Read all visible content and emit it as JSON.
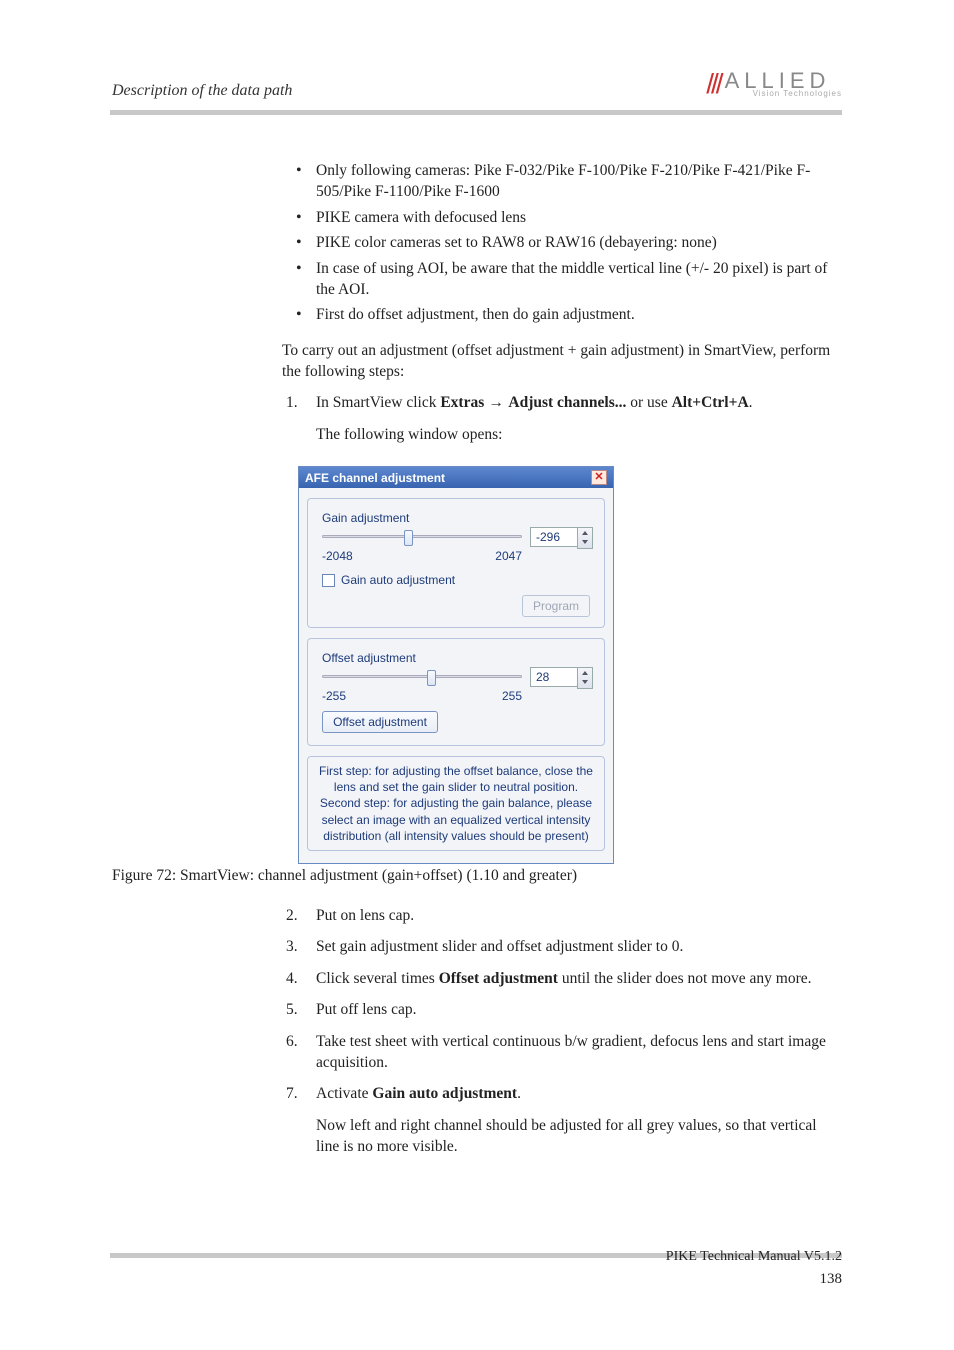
{
  "header": {
    "title": "Description of the data path",
    "logo_main": "ALLIED",
    "logo_sub": "Vision Technologies"
  },
  "bullets": [
    "Only following cameras: Pike F-032/Pike F-100/Pike F-210/Pike F-421/Pike F-505/Pike F-1100/Pike F-1600",
    "PIKE camera with defocused lens",
    "PIKE color cameras set to RAW8 or RAW16 (debayering: none)",
    "In case of using AOI, be aware that the middle vertical line (+/- 20 pixel) is part of the AOI.",
    "First do offset adjustment, then do gain adjustment."
  ],
  "intro": "To carry out an adjustment (offset adjustment + gain adjustment) in SmartView, perform the following steps:",
  "step1": {
    "pre": "In SmartView click ",
    "b1": "Extras",
    "arrow": " → ",
    "b2": "Adjust channels...",
    "mid": " or use ",
    "b3": "Alt+Ctrl+A",
    "end": ".",
    "sub": "The following window opens:"
  },
  "dialog": {
    "title": "AFE channel adjustment",
    "gain_label": "Gain adjustment",
    "gain_value": "-296",
    "gain_min": "-2048",
    "gain_max": "2047",
    "gain_thumb_pct": 43,
    "gain_auto": "Gain auto adjustment",
    "program": "Program",
    "offset_label": "Offset adjustment",
    "offset_value": "28",
    "offset_min": "-255",
    "offset_max": "255",
    "offset_thumb_pct": 55,
    "offset_btn": "Offset adjustment",
    "info": "First step: for adjusting the offset balance, close the lens and set the gain slider to neutral position. Second step: for adjusting the gain balance, please select an image with an equalized vertical intensity distribution (all intensity values should be present)"
  },
  "caption": "Figure 72: SmartView: channel adjustment (gain+offset) (1.10 and greater)",
  "steps2_text": {
    "s2": "Put on lens cap.",
    "s3": "Set gain adjustment slider and offset adjustment slider to 0.",
    "s4_pre": "Click several times ",
    "s4_b": "Offset adjustment",
    "s4_post": " until the slider does not move any more.",
    "s5": "Put off lens cap.",
    "s6": "Take test sheet with vertical continuous b/w gradient, defocus lens and start image acquisition.",
    "s7_pre": "Activate ",
    "s7_b": "Gain auto adjustment",
    "s7_post": ".",
    "s7_sub": "Now left and right channel should be adjusted for all grey values, so that vertical line is no more visible."
  },
  "footer": {
    "doc": "PIKE Technical Manual V5.1.2",
    "page": "138"
  }
}
